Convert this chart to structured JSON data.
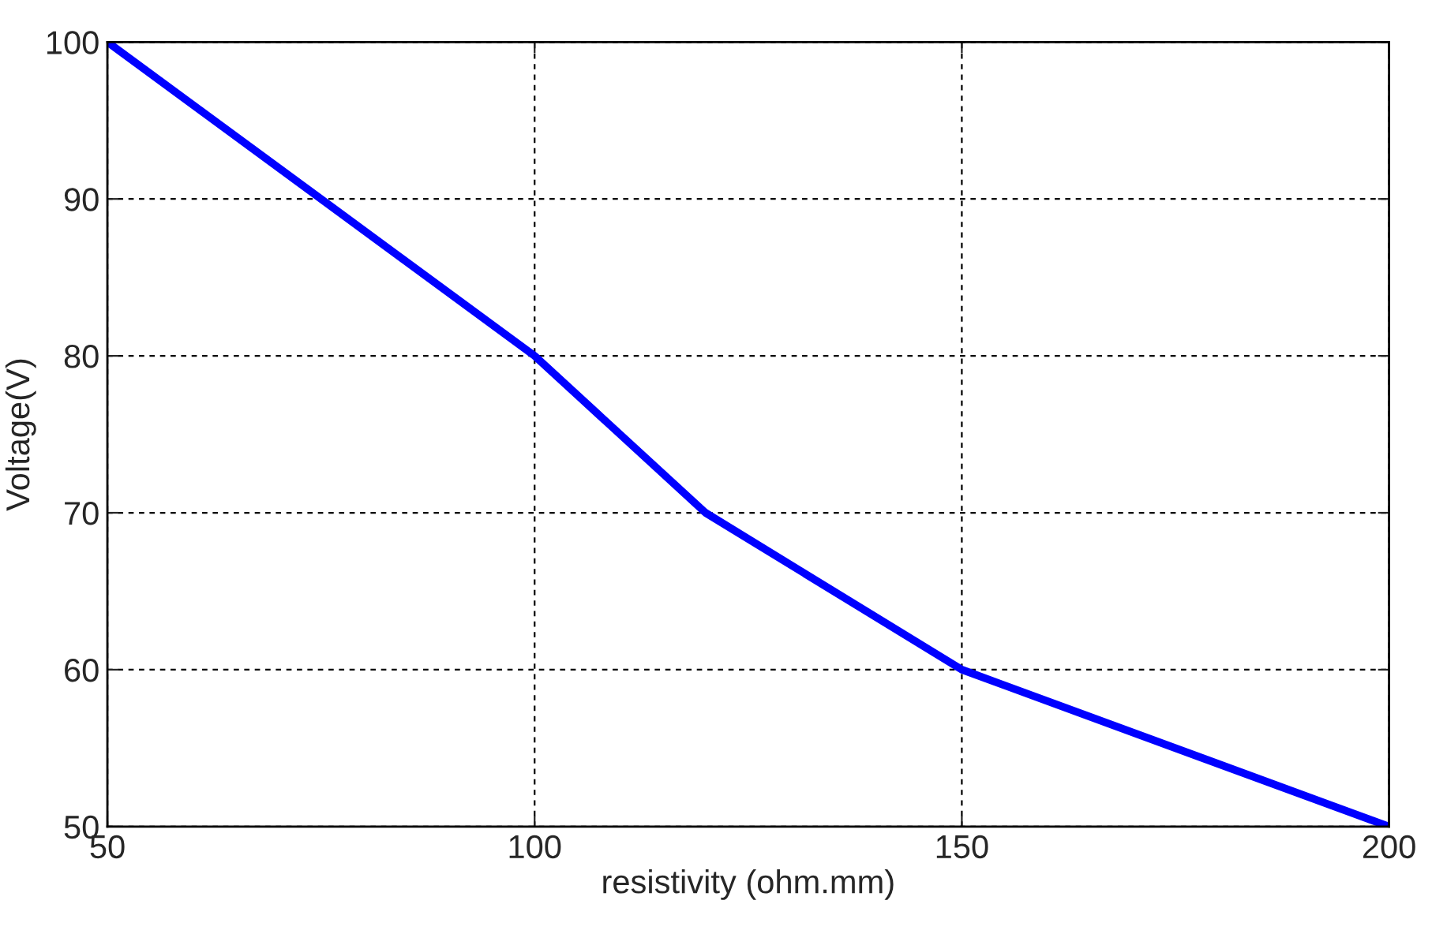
{
  "chart_data": {
    "type": "line",
    "xlabel": "resistivity (ohm.mm)",
    "ylabel": "Voltage(V)",
    "series": [
      {
        "color": "#0000ff",
        "x": [
          50,
          100,
          120,
          150,
          200
        ],
        "values": [
          100,
          80,
          70,
          60,
          50
        ]
      }
    ],
    "xlim": [
      50,
      200
    ],
    "xticks": [
      50,
      100,
      150,
      200
    ],
    "ylim": [
      50,
      100
    ],
    "yticks": [
      50,
      60,
      70,
      80,
      90,
      100
    ],
    "grid": true,
    "line_style": "solid",
    "marker": "none"
  }
}
